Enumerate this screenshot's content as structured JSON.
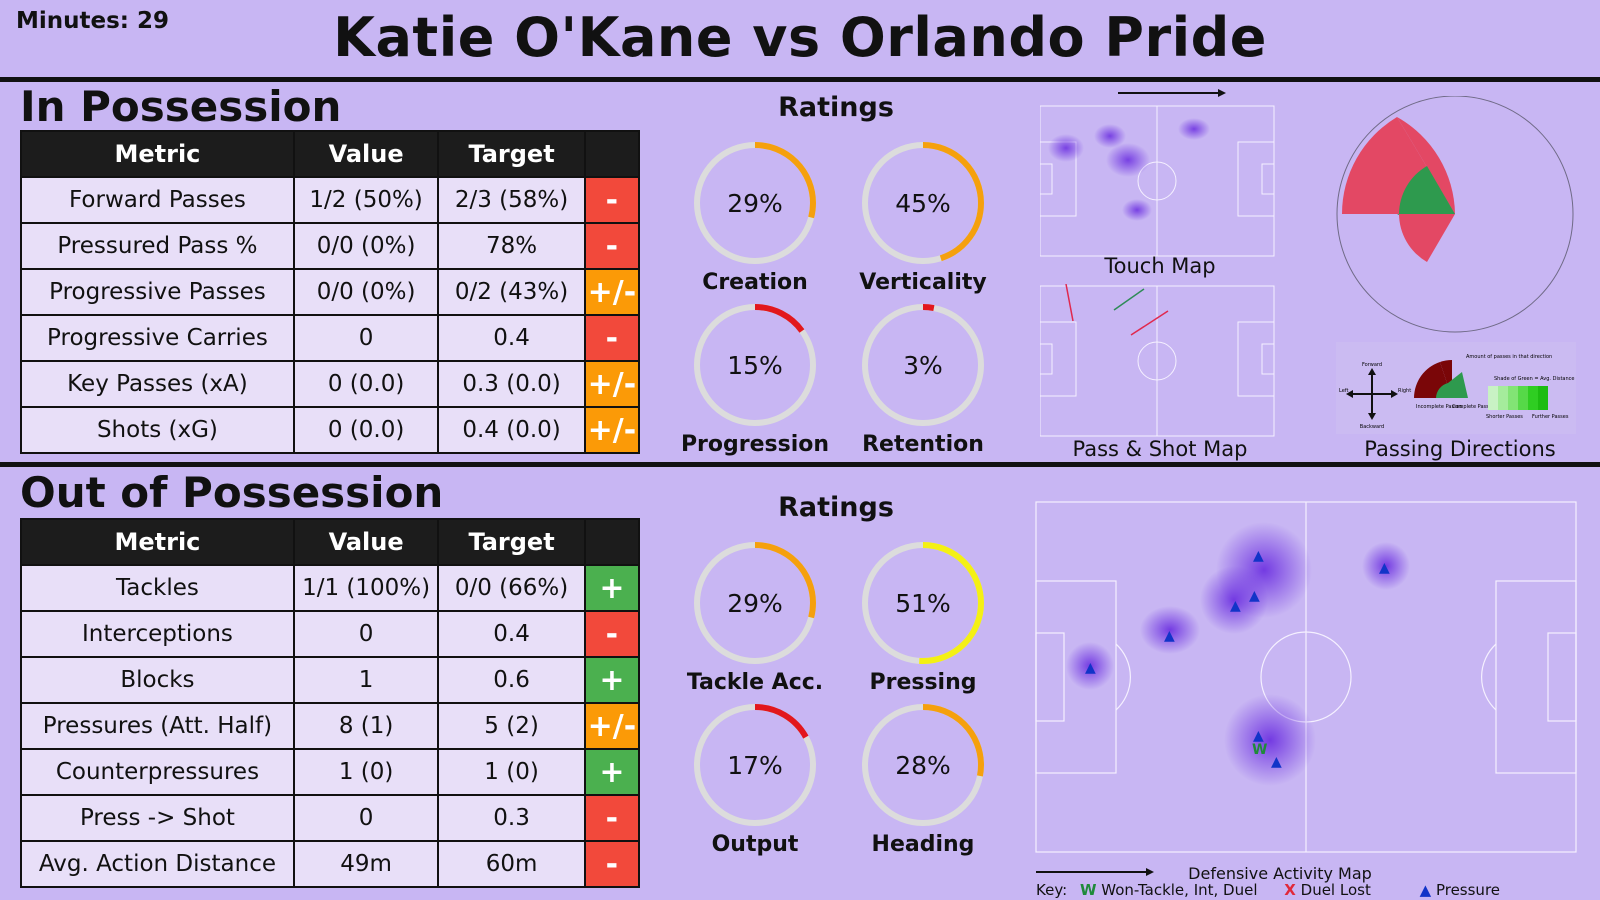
{
  "header": {
    "minutes": "Minutes: 29",
    "title": "Katie O'Kane vs Orlando Pride"
  },
  "in_possession": {
    "title": "In Possession",
    "columns": [
      "Metric",
      "Value",
      "Target",
      ""
    ],
    "rows": [
      {
        "metric": "Forward Passes",
        "value": "1/2 (50%)",
        "target": "2/3 (58%)",
        "flag": "-",
        "color": "#f2493b"
      },
      {
        "metric": "Pressured Pass %",
        "value": "0/0 (0%)",
        "target": "78%",
        "flag": "-",
        "color": "#f2493b"
      },
      {
        "metric": "Progressive Passes",
        "value": "0/0 (0%)",
        "target": "0/2 (43%)",
        "flag": "+/-",
        "color": "#fb9a07"
      },
      {
        "metric": "Progressive Carries",
        "value": "0",
        "target": "0.4",
        "flag": "-",
        "color": "#f2493b"
      },
      {
        "metric": "Key Passes (xA)",
        "value": "0 (0.0)",
        "target": "0.3 (0.0)",
        "flag": "+/-",
        "color": "#fb9a07"
      },
      {
        "metric": "Shots (xG)",
        "value": "0 (0.0)",
        "target": "0.4 (0.0)",
        "flag": "+/-",
        "color": "#fb9a07"
      }
    ],
    "ratings_title": "Ratings",
    "ratings": [
      {
        "label": "Creation",
        "value": "29%",
        "pct": 29,
        "color": "#f5a00d"
      },
      {
        "label": "Verticality",
        "value": "45%",
        "pct": 45,
        "color": "#f5a00d"
      },
      {
        "label": "Progression",
        "value": "15%",
        "pct": 15,
        "color": "#e2171c"
      },
      {
        "label": "Retention",
        "value": "3%",
        "pct": 3,
        "color": "#e2171c"
      }
    ],
    "touch_map_label": "Touch Map",
    "pass_shot_map_label": "Pass & Shot Map",
    "passing_directions_label": "Passing Directions",
    "legend": {
      "forward": "Forward",
      "backward": "Backward",
      "left": "Left",
      "right": "Right",
      "amount": "Amount of passes in that direction",
      "incomplete": "Incomplete Passes",
      "complete": "Complete Passes",
      "shade": "Shade of Green = Avg. Distance",
      "shorter": "Shorter Passes",
      "further": "Further Passes"
    }
  },
  "out_possession": {
    "title": "Out of Possession",
    "columns": [
      "Metric",
      "Value",
      "Target",
      ""
    ],
    "rows": [
      {
        "metric": "Tackles",
        "value": "1/1 (100%)",
        "target": "0/0 (66%)",
        "flag": "+",
        "color": "#4bb04f"
      },
      {
        "metric": "Interceptions",
        "value": "0",
        "target": "0.4",
        "flag": "-",
        "color": "#f2493b"
      },
      {
        "metric": "Blocks",
        "value": "1",
        "target": "0.6",
        "flag": "+",
        "color": "#4bb04f"
      },
      {
        "metric": "Pressures (Att. Half)",
        "value": "8 (1)",
        "target": "5 (2)",
        "flag": "+/-",
        "color": "#fb9a07"
      },
      {
        "metric": "Counterpressures",
        "value": "1 (0)",
        "target": "1 (0)",
        "flag": "+",
        "color": "#4bb04f"
      },
      {
        "metric": "Press -> Shot",
        "value": "0",
        "target": "0.3",
        "flag": "-",
        "color": "#f2493b"
      },
      {
        "metric": "Avg. Action Distance",
        "value": "49m",
        "target": "60m",
        "flag": "-",
        "color": "#f2493b"
      }
    ],
    "ratings_title": "Ratings",
    "ratings": [
      {
        "label": "Tackle Acc.",
        "value": "29%",
        "pct": 29,
        "color": "#f5a00d"
      },
      {
        "label": "Pressing",
        "value": "51%",
        "pct": 51,
        "color": "#f4f014"
      },
      {
        "label": "Output",
        "value": "17%",
        "pct": 17,
        "color": "#e2171c"
      },
      {
        "label": "Heading",
        "value": "28%",
        "pct": 28,
        "color": "#f5a00d"
      }
    ],
    "defensive_map_label": "Defensive Activity Map",
    "key": {
      "prefix": "Key:",
      "won_symbol": "W",
      "won_text": "Won-Tackle, Int, Duel",
      "lost_symbol": "X",
      "lost_text": "Duel Lost",
      "pressure_symbol": "▲",
      "pressure_text": "Pressure"
    }
  }
}
